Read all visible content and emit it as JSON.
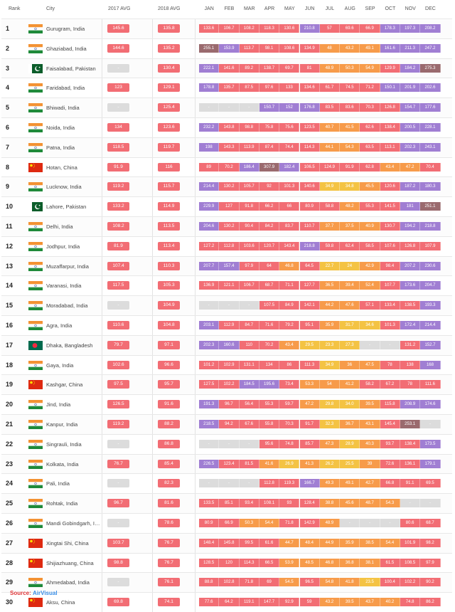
{
  "chart_data": {
    "type": "table",
    "headers": {
      "rank": "Rank",
      "city": "City",
      "avg2017": "2017 AVG",
      "avg2018": "2018 AVG",
      "months": [
        "JAN",
        "FEB",
        "MAR",
        "APR",
        "MAY",
        "JUN",
        "JUL",
        "AUG",
        "SEP",
        "OCT",
        "NOV",
        "DEC"
      ]
    },
    "rows": [
      {
        "rank": "1",
        "city": "Gurugram, India",
        "country": "india",
        "avg2017": "145.6",
        "avg2018": "135.8",
        "months": [
          "133.6",
          "106.7",
          "108.2",
          "118.3",
          "130.6",
          "210.8",
          "57",
          "69.6",
          "66.9",
          "178.3",
          "197.3",
          "208.2"
        ]
      },
      {
        "rank": "2",
        "city": "Ghaziabad, India",
        "country": "india",
        "avg2017": "144.6",
        "avg2018": "135.2",
        "months": [
          "255.1",
          "153.9",
          "113.7",
          "98.1",
          "108.6",
          "134.9",
          "48",
          "43.2",
          "49.1",
          "161.6",
          "211.3",
          "247.2"
        ]
      },
      {
        "rank": "3",
        "city": "Faisalabad, Pakistan",
        "country": "pakistan",
        "avg2017": "-",
        "avg2018": "130.4",
        "months": [
          "222.1",
          "141.6",
          "89.2",
          "138.7",
          "69.7",
          "81",
          "48.9",
          "50.3",
          "54.9",
          "129.9",
          "184.2",
          "275.3"
        ]
      },
      {
        "rank": "4",
        "city": "Faridabad, India",
        "country": "india",
        "avg2017": "123",
        "avg2018": "129.1",
        "months": [
          "178.8",
          "135.7",
          "87.5",
          "97.6",
          "133",
          "134.6",
          "61.7",
          "74.5",
          "71.2",
          "150.1",
          "201.9",
          "202.6"
        ]
      },
      {
        "rank": "5",
        "city": "Bhiwadi, India",
        "country": "india",
        "avg2017": "-",
        "avg2018": "125.4",
        "months": [
          "-",
          "-",
          "-",
          "150.7",
          "152",
          "176.8",
          "83.5",
          "83.6",
          "70.3",
          "126.8",
          "154.7",
          "177.6"
        ]
      },
      {
        "rank": "6",
        "city": "Noida, India",
        "country": "india",
        "avg2017": "134",
        "avg2018": "123.6",
        "months": [
          "232.2",
          "143.8",
          "98.8",
          "75.8",
          "75.6",
          "123.5",
          "40.7",
          "41.5",
          "62.6",
          "138.4",
          "200.5",
          "228.1"
        ]
      },
      {
        "rank": "7",
        "city": "Patna, India",
        "country": "india",
        "avg2017": "118.5",
        "avg2018": "119.7",
        "months": [
          "198",
          "143.3",
          "113.9",
          "87.4",
          "74.4",
          "114.3",
          "44.1",
          "54.3",
          "63.5",
          "113.1",
          "202.3",
          "243.1"
        ]
      },
      {
        "rank": "8",
        "city": "Hotan, China",
        "country": "china",
        "avg2017": "91.9",
        "avg2018": "116",
        "months": [
          "89",
          "70.2",
          "186.4",
          "307.9",
          "182.4",
          "106.5",
          "124.9",
          "91.9",
          "62.8",
          "43.4",
          "47.2",
          "70.4"
        ]
      },
      {
        "rank": "9",
        "city": "Lucknow, India",
        "country": "india",
        "avg2017": "119.2",
        "avg2018": "115.7",
        "months": [
          "214.4",
          "130.2",
          "105.7",
          "92",
          "101.3",
          "140.6",
          "34.9",
          "34.8",
          "45.5",
          "120.6",
          "187.2",
          "180.3"
        ]
      },
      {
        "rank": "10",
        "city": "Lahore, Pakistan",
        "country": "pakistan",
        "avg2017": "133.2",
        "avg2018": "114.9",
        "months": [
          "229.9",
          "127",
          "91.8",
          "66.2",
          "66",
          "80.9",
          "58.8",
          "48.2",
          "55.3",
          "141.5",
          "181",
          "251.1"
        ]
      },
      {
        "rank": "11",
        "city": "Delhi, India",
        "country": "india",
        "avg2017": "108.2",
        "avg2018": "113.5",
        "months": [
          "204.6",
          "130.2",
          "90.4",
          "84.2",
          "83.7",
          "110.7",
          "37.7",
          "37.5",
          "40.9",
          "130.7",
          "194.2",
          "218.8"
        ]
      },
      {
        "rank": "12",
        "city": "Jodhpur, India",
        "country": "india",
        "avg2017": "81.9",
        "avg2018": "113.4",
        "months": [
          "127.2",
          "112.8",
          "103.6",
          "120.7",
          "143.4",
          "218.8",
          "59.8",
          "62.4",
          "58.5",
          "107.6",
          "126.8",
          "107.9"
        ]
      },
      {
        "rank": "13",
        "city": "Muzaffarpur, India",
        "country": "india",
        "avg2017": "107.4",
        "avg2018": "110.3",
        "months": [
          "207.7",
          "157.4",
          "97.9",
          "64",
          "46.8",
          "64.5",
          "22.7",
          "24",
          "42.9",
          "98.4",
          "207.2",
          "230.6"
        ]
      },
      {
        "rank": "14",
        "city": "Varanasi, India",
        "country": "india",
        "avg2017": "117.5",
        "avg2018": "105.3",
        "months": [
          "136.9",
          "121.1",
          "106.7",
          "68.7",
          "71.1",
          "127.7",
          "36.5",
          "39.4",
          "52.4",
          "107.7",
          "173.6",
          "204.7"
        ]
      },
      {
        "rank": "15",
        "city": "Moradabad, India",
        "country": "india",
        "avg2017": "-",
        "avg2018": "104.9",
        "months": [
          "-",
          "-",
          "-",
          "107.5",
          "84.9",
          "142.1",
          "44.2",
          "47.6",
          "57.1",
          "133.4",
          "138.5",
          "193.3"
        ]
      },
      {
        "rank": "16",
        "city": "Agra, India",
        "country": "india",
        "avg2017": "110.6",
        "avg2018": "104.8",
        "months": [
          "203.1",
          "112.9",
          "84.7",
          "71.6",
          "79.2",
          "95.1",
          "35.9",
          "31.7",
          "34.6",
          "101.3",
          "172.4",
          "214.4"
        ]
      },
      {
        "rank": "17",
        "city": "Dhaka, Bangladesh",
        "country": "bangladesh",
        "avg2017": "79.7",
        "avg2018": "97.1",
        "months": [
          "202.3",
          "160.6",
          "110",
          "70.2",
          "43.4",
          "29.5",
          "23.3",
          "27.3",
          "-",
          "-",
          "131.2",
          "152.7"
        ]
      },
      {
        "rank": "18",
        "city": "Gaya, India",
        "country": "india",
        "avg2017": "102.6",
        "avg2018": "96.6",
        "months": [
          "101.2",
          "102.9",
          "131.1",
          "134",
          "86",
          "111.3",
          "34.9",
          "36",
          "47.5",
          "78",
          "138",
          "168"
        ]
      },
      {
        "rank": "19",
        "city": "Kashgar, China",
        "country": "china",
        "avg2017": "97.5",
        "avg2018": "95.7",
        "months": [
          "127.5",
          "102.2",
          "184.5",
          "195.6",
          "73.4",
          "53.3",
          "54",
          "41.2",
          "58.2",
          "67.2",
          "78",
          "111.6"
        ]
      },
      {
        "rank": "20",
        "city": "Jind, India",
        "country": "india",
        "avg2017": "126.5",
        "avg2018": "91.6",
        "months": [
          "191.3",
          "96.7",
          "56.4",
          "55.3",
          "59.7",
          "47.2",
          "29.8",
          "34.0",
          "39.5",
          "115.8",
          "208.9",
          "174.6"
        ]
      },
      {
        "rank": "21",
        "city": "Kanpur, India",
        "country": "india",
        "avg2017": "119.2",
        "avg2018": "88.2",
        "months": [
          "218.5",
          "94.2",
          "67.6",
          "55.8",
          "70.3",
          "91.7",
          "32.3",
          "36.7",
          "43.1",
          "145.4",
          "253.1",
          "-"
        ]
      },
      {
        "rank": "22",
        "city": "Singrauli, India",
        "country": "india",
        "avg2017": "-",
        "avg2018": "86.8",
        "months": [
          "-",
          "-",
          "-",
          "95.6",
          "74.8",
          "85.7",
          "47.3",
          "28.9",
          "40.3",
          "93.7",
          "138.4",
          "173.5"
        ]
      },
      {
        "rank": "23",
        "city": "Kolkata, India",
        "country": "india",
        "avg2017": "76.7",
        "avg2018": "85.4",
        "months": [
          "226.5",
          "123.4",
          "81.5",
          "41.6",
          "26.9",
          "41.3",
          "26.2",
          "25.5",
          "39",
          "72.6",
          "136.1",
          "179.1"
        ]
      },
      {
        "rank": "24",
        "city": "Pali, India",
        "country": "india",
        "avg2017": "-",
        "avg2018": "82.3",
        "months": [
          "-",
          "-",
          "-",
          "112.8",
          "119.3",
          "166.7",
          "49.3",
          "49.1",
          "42.7",
          "66.8",
          "91.1",
          "69.5"
        ]
      },
      {
        "rank": "25",
        "city": "Rohtak, India",
        "country": "india",
        "avg2017": "96.7",
        "avg2018": "81.6",
        "months": [
          "133.5",
          "85.1",
          "93.4",
          "108.1",
          "93",
          "128.4",
          "38.8",
          "45.6",
          "48.7",
          "54.3",
          "-",
          "-"
        ]
      },
      {
        "rank": "26",
        "city": "Mandi Gobindgarh, India",
        "country": "india",
        "avg2017": "-",
        "avg2018": "78.6",
        "months": [
          "80.9",
          "66.9",
          "50.3",
          "54.4",
          "71.8",
          "142.9",
          "48.9",
          "-",
          "-",
          "-",
          "80.6",
          "68.7"
        ]
      },
      {
        "rank": "27",
        "city": "Xingtai Shi, China",
        "country": "china",
        "avg2017": "103.7",
        "avg2018": "76.7",
        "months": [
          "148.4",
          "145.8",
          "99.5",
          "61.6",
          "44.7",
          "48.4",
          "44.9",
          "35.9",
          "38.5",
          "54.4",
          "101.9",
          "98.2"
        ]
      },
      {
        "rank": "28",
        "city": "Shijiazhuang, China",
        "country": "china",
        "avg2017": "98.8",
        "avg2018": "76.7",
        "months": [
          "128.5",
          "120",
          "114.3",
          "66.5",
          "53.9",
          "48.5",
          "46.8",
          "36.8",
          "38.1",
          "61.5",
          "108.5",
          "97.9"
        ]
      },
      {
        "rank": "29",
        "city": "Ahmedabad, India",
        "country": "india",
        "avg2017": "-",
        "avg2018": "76.1",
        "months": [
          "88.8",
          "102.8",
          "71.8",
          "69",
          "54.5",
          "96.5",
          "54.8",
          "41.8",
          "23.5",
          "100.4",
          "102.2",
          "90.2"
        ]
      },
      {
        "rank": "30",
        "city": "Aksu, China",
        "country": "china",
        "avg2017": "69.8",
        "avg2018": "74.1",
        "months": [
          "77.6",
          "64.2",
          "119.1",
          "147.7",
          "92.9",
          "59",
          "43.2",
          "39.5",
          "43.7",
          "40.2",
          "74.8",
          "86.2"
        ]
      }
    ],
    "source_prefix": "Source: ",
    "source_name": "AirVisual"
  },
  "colors": {
    "empty": "#dcdcdc",
    "moderate": "#f4c343",
    "usg": "#f79b4a",
    "unhealthy": "#f26d74",
    "very_unhealthy": "#a07ed3",
    "hazardous": "#9a6a6e"
  }
}
